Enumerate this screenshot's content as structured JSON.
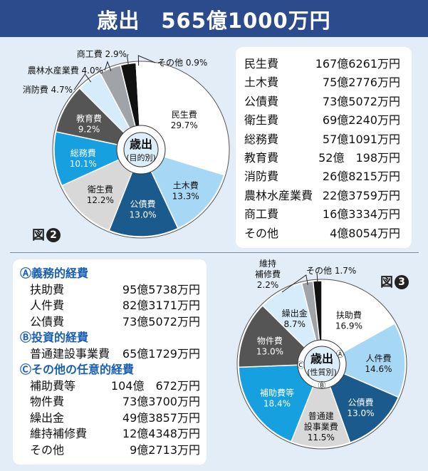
{
  "header": {
    "title": "歳出　565億1000万円"
  },
  "fig2": {
    "label_prefix": "図",
    "label_num": "2"
  },
  "fig3": {
    "label_prefix": "図",
    "label_num": "3"
  },
  "colors": {
    "header": "#2b4b8c",
    "navy": "#1a5a8c",
    "blue": "#16a0e0",
    "lightblue": "#a6d8f5",
    "darkgray": "#555555",
    "lightgray": "#d8d8d8",
    "gray": "#a0a4a8",
    "paleblue": "#d6ecfa",
    "black": "#111111",
    "white": "#ffffff"
  },
  "chart_data": [
    {
      "type": "pie",
      "center_label": [
        "歳出",
        "(目的別)"
      ],
      "categories": [
        "民生費",
        "土木費",
        "公債費",
        "衛生費",
        "総務費",
        "教育費",
        "消防費",
        "農林水産業費",
        "商工費",
        "その他"
      ],
      "values": [
        29.7,
        13.3,
        13.0,
        12.2,
        10.1,
        9.2,
        4.7,
        4.0,
        2.9,
        0.9
      ],
      "labels": [
        "29.7%",
        "13.3%",
        "13.0%",
        "12.2%",
        "10.1%",
        "9.2%",
        "4.7%",
        "4.0%",
        "2.9%",
        "0.9%"
      ],
      "colors": [
        "#ffffff",
        "#a6d8f5",
        "#1a5a8c",
        "#d8d8d8",
        "#16a0e0",
        "#555555",
        "#d6ecfa",
        "#a0a4a8",
        "#111111",
        "#ffffff"
      ],
      "amounts": [
        "167億6261万円",
        "75億2776万円",
        "73億5072万円",
        "69億2240万円",
        "57億1091万円",
        "52億　198万円",
        "26億8215万円",
        "22億3759万円",
        "16億3334万円",
        "4億8054万円"
      ]
    },
    {
      "type": "pie",
      "center_label": [
        "歳出",
        "(性質別)"
      ],
      "group_marks": [
        "Ⓐ",
        "Ⓑ",
        "Ⓒ"
      ],
      "categories": [
        "扶助費",
        "人件費",
        "公債費",
        "普通建設事業費",
        "補助費等",
        "物件費",
        "繰出金",
        "維持補修費",
        "その他"
      ],
      "values": [
        16.9,
        14.6,
        13.0,
        11.5,
        18.4,
        13.0,
        8.7,
        2.2,
        1.7
      ],
      "labels": [
        "16.9%",
        "14.6%",
        "13.0%",
        "11.5%",
        "18.4%",
        "13.0%",
        "8.7%",
        "2.2%",
        "1.7%"
      ],
      "colors": [
        "#ffffff",
        "#a6d8f5",
        "#1a5a8c",
        "#d8d8d8",
        "#16a0e0",
        "#555555",
        "#d6ecfa",
        "#a0a4a8",
        "#111111"
      ],
      "groups": [
        {
          "title": "Ⓐ義務的経費",
          "items": [
            {
              "name": "扶助費",
              "amount": "95億5738万円"
            },
            {
              "name": "人件費",
              "amount": "82億3171万円"
            },
            {
              "name": "公債費",
              "amount": "73億5072万円"
            }
          ]
        },
        {
          "title": "Ⓑ投資的経費",
          "items": [
            {
              "name": "普通建設事業費",
              "amount": "65億1729万円"
            }
          ]
        },
        {
          "title": "Ⓒその他の任意的経費",
          "items": [
            {
              "name": "補助費等",
              "amount": "104億　672万円"
            },
            {
              "name": "物件費",
              "amount": "73億3700万円"
            },
            {
              "name": "繰出金",
              "amount": "49億3857万円"
            },
            {
              "name": "維持補修費",
              "amount": "12億4348万円"
            },
            {
              "name": "その他",
              "amount": "9億2713万円"
            }
          ]
        }
      ]
    }
  ]
}
